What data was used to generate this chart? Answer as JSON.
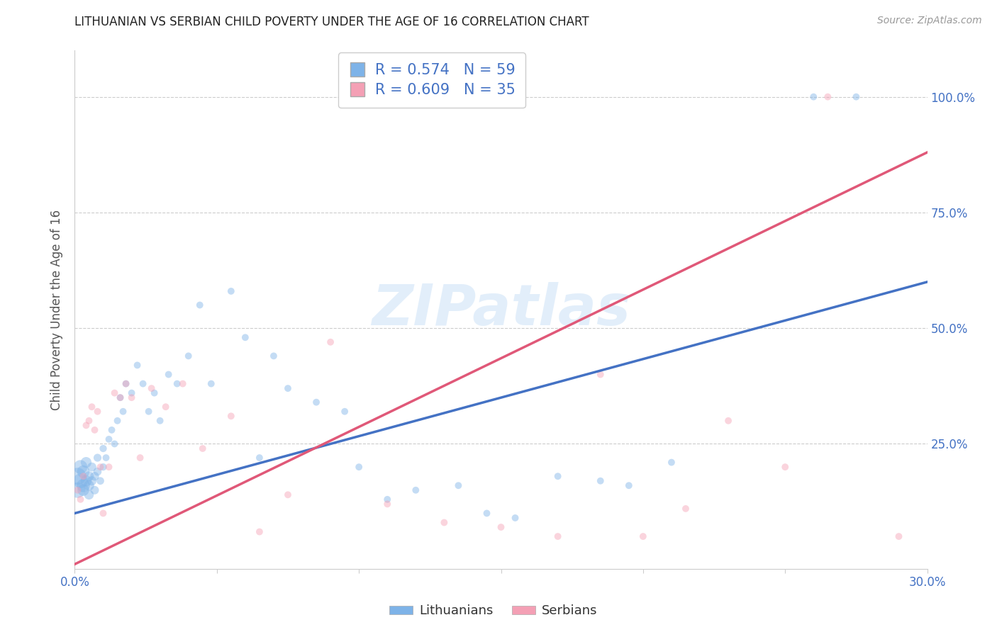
{
  "title": "LITHUANIAN VS SERBIAN CHILD POVERTY UNDER THE AGE OF 16 CORRELATION CHART",
  "source": "Source: ZipAtlas.com",
  "ylabel": "Child Poverty Under the Age of 16",
  "xlim": [
    0.0,
    0.3
  ],
  "ylim": [
    -0.02,
    1.1
  ],
  "grid_color": "#cccccc",
  "background_color": "#ffffff",
  "lithuanian_color": "#7eb3e8",
  "serbian_color": "#f4a0b5",
  "lithuanian_line_color": "#4472c4",
  "serbian_line_color": "#e05878",
  "title_color": "#222222",
  "axis_label_color": "#555555",
  "tick_color": "#4472c4",
  "watermark": "ZIPatlas",
  "legend1_label": "R = 0.574   N = 59",
  "legend2_label": "R = 0.609   N = 35",
  "legend_label_lithuanians": "Lithuanians",
  "legend_label_serbians": "Serbians",
  "lith_line_x0": 0.0,
  "lith_line_y0": 0.1,
  "lith_line_x1": 0.3,
  "lith_line_y1": 0.6,
  "serb_line_x0": 0.0,
  "serb_line_y0": -0.01,
  "serb_line_x1": 0.3,
  "serb_line_y1": 0.88,
  "lithuanian_x": [
    0.001,
    0.001,
    0.002,
    0.002,
    0.003,
    0.003,
    0.003,
    0.004,
    0.004,
    0.005,
    0.005,
    0.005,
    0.006,
    0.006,
    0.007,
    0.007,
    0.008,
    0.008,
    0.009,
    0.01,
    0.01,
    0.011,
    0.012,
    0.013,
    0.014,
    0.015,
    0.016,
    0.017,
    0.018,
    0.02,
    0.022,
    0.024,
    0.026,
    0.028,
    0.03,
    0.033,
    0.036,
    0.04,
    0.044,
    0.048,
    0.055,
    0.06,
    0.065,
    0.07,
    0.075,
    0.085,
    0.095,
    0.1,
    0.11,
    0.12,
    0.135,
    0.145,
    0.155,
    0.17,
    0.185,
    0.195,
    0.21,
    0.26,
    0.275
  ],
  "lithuanian_y": [
    0.18,
    0.15,
    0.17,
    0.2,
    0.16,
    0.19,
    0.15,
    0.17,
    0.21,
    0.16,
    0.18,
    0.14,
    0.17,
    0.2,
    0.18,
    0.15,
    0.19,
    0.22,
    0.17,
    0.2,
    0.24,
    0.22,
    0.26,
    0.28,
    0.25,
    0.3,
    0.35,
    0.32,
    0.38,
    0.36,
    0.42,
    0.38,
    0.32,
    0.36,
    0.3,
    0.4,
    0.38,
    0.44,
    0.55,
    0.38,
    0.58,
    0.48,
    0.22,
    0.44,
    0.37,
    0.34,
    0.32,
    0.2,
    0.13,
    0.15,
    0.16,
    0.1,
    0.09,
    0.18,
    0.17,
    0.16,
    0.21,
    1.0,
    1.0
  ],
  "lithuanian_sizes": [
    300,
    250,
    220,
    200,
    180,
    160,
    140,
    130,
    120,
    110,
    100,
    95,
    90,
    85,
    80,
    75,
    70,
    65,
    60,
    55,
    55,
    50,
    50,
    50,
    50,
    50,
    50,
    50,
    50,
    50,
    50,
    50,
    50,
    50,
    50,
    50,
    50,
    50,
    50,
    50,
    50,
    50,
    50,
    50,
    50,
    50,
    50,
    50,
    50,
    50,
    50,
    50,
    50,
    50,
    50,
    50,
    50,
    50,
    50
  ],
  "serbian_x": [
    0.001,
    0.002,
    0.003,
    0.004,
    0.005,
    0.006,
    0.007,
    0.008,
    0.009,
    0.01,
    0.012,
    0.014,
    0.016,
    0.018,
    0.02,
    0.023,
    0.027,
    0.032,
    0.038,
    0.045,
    0.055,
    0.065,
    0.075,
    0.09,
    0.11,
    0.13,
    0.15,
    0.17,
    0.185,
    0.2,
    0.215,
    0.23,
    0.25,
    0.265,
    0.29
  ],
  "serbian_y": [
    0.15,
    0.13,
    0.18,
    0.29,
    0.3,
    0.33,
    0.28,
    0.32,
    0.2,
    0.1,
    0.2,
    0.36,
    0.35,
    0.38,
    0.35,
    0.22,
    0.37,
    0.33,
    0.38,
    0.24,
    0.31,
    0.06,
    0.14,
    0.47,
    0.12,
    0.08,
    0.07,
    0.05,
    0.4,
    0.05,
    0.11,
    0.3,
    0.2,
    1.0,
    0.05
  ],
  "serbian_sizes": [
    50,
    50,
    50,
    50,
    50,
    50,
    50,
    50,
    50,
    50,
    50,
    50,
    50,
    50,
    50,
    50,
    50,
    50,
    50,
    50,
    50,
    50,
    50,
    50,
    50,
    50,
    50,
    50,
    50,
    50,
    50,
    50,
    50,
    50,
    50
  ]
}
